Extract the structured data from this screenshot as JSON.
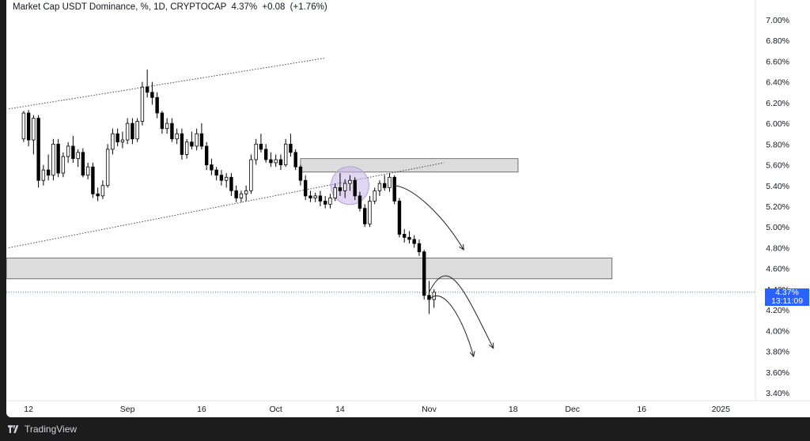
{
  "header": {
    "title": "Market Cap USDT Dominance, %, 1D, CRYPTOCAP",
    "last": "4.37%",
    "change": "+0.08",
    "change_pct": "(+1.76%)"
  },
  "price_badge": {
    "value": "4.37%",
    "countdown": "13:11:09"
  },
  "footer": {
    "brand": "TradingView"
  },
  "colors": {
    "up": "#ffffff",
    "down": "#000000",
    "zone": "#dcdcdc",
    "last_line": "#2962ff",
    "highlight": "#c8b4e6"
  },
  "chart_data": {
    "type": "candlestick",
    "title": "Market Cap USDT Dominance, %, 1D, CRYPTOCAP",
    "y_range": [
      3.3,
      7.2
    ],
    "y_ticks": [
      "3.40%",
      "3.60%",
      "3.80%",
      "4.00%",
      "4.20%",
      "4.40%",
      "4.60%",
      "4.80%",
      "5.00%",
      "5.20%",
      "5.40%",
      "5.60%",
      "5.80%",
      "6.00%",
      "6.20%",
      "6.40%",
      "6.60%",
      "6.80%",
      "7.00%"
    ],
    "x_ticks": [
      {
        "label": "12",
        "day": 0
      },
      {
        "label": "Sep",
        "day": 20
      },
      {
        "label": "16",
        "day": 35
      },
      {
        "label": "Oct",
        "day": 50
      },
      {
        "label": "14",
        "day": 63
      },
      {
        "label": "Nov",
        "day": 81
      },
      {
        "label": "18",
        "day": 98
      },
      {
        "label": "Dec",
        "day": 110
      },
      {
        "label": "16",
        "day": 124
      },
      {
        "label": "2025",
        "day": 140
      }
    ],
    "x_day_range": [
      -4.5,
      147
    ],
    "candles": [
      [
        -1,
        5.85,
        6.12,
        5.82,
        6.1
      ],
      [
        0,
        6.1,
        6.13,
        5.78,
        5.84
      ],
      [
        1,
        5.84,
        6.08,
        5.7,
        6.05
      ],
      [
        2,
        6.05,
        6.08,
        5.38,
        5.45
      ],
      [
        3,
        5.45,
        5.6,
        5.4,
        5.55
      ],
      [
        4,
        5.55,
        5.7,
        5.45,
        5.5
      ],
      [
        5,
        5.5,
        5.85,
        5.45,
        5.8
      ],
      [
        6,
        5.8,
        5.85,
        5.48,
        5.52
      ],
      [
        7,
        5.52,
        5.72,
        5.48,
        5.68
      ],
      [
        8,
        5.68,
        5.82,
        5.62,
        5.78
      ],
      [
        9,
        5.78,
        5.88,
        5.62,
        5.66
      ],
      [
        10,
        5.66,
        5.75,
        5.58,
        5.72
      ],
      [
        11,
        5.72,
        5.76,
        5.48,
        5.5
      ],
      [
        12,
        5.5,
        5.62,
        5.46,
        5.58
      ],
      [
        13,
        5.58,
        5.62,
        5.28,
        5.32
      ],
      [
        14,
        5.32,
        5.38,
        5.25,
        5.3
      ],
      [
        15,
        5.3,
        5.45,
        5.27,
        5.4
      ],
      [
        16,
        5.4,
        5.8,
        5.38,
        5.75
      ],
      [
        17,
        5.75,
        5.95,
        5.7,
        5.9
      ],
      [
        18,
        5.9,
        5.95,
        5.78,
        5.82
      ],
      [
        19,
        5.82,
        5.92,
        5.76,
        5.84
      ],
      [
        20,
        5.84,
        6.05,
        5.8,
        6.0
      ],
      [
        21,
        6.0,
        6.05,
        5.8,
        5.85
      ],
      [
        22,
        5.85,
        6.05,
        5.82,
        6.02
      ],
      [
        23,
        6.02,
        6.4,
        5.98,
        6.35
      ],
      [
        24,
        6.35,
        6.52,
        6.25,
        6.3
      ],
      [
        25,
        6.3,
        6.4,
        6.18,
        6.25
      ],
      [
        26,
        6.25,
        6.3,
        6.05,
        6.1
      ],
      [
        27,
        6.1,
        6.12,
        5.9,
        5.95
      ],
      [
        28,
        5.95,
        6.05,
        5.9,
        6.0
      ],
      [
        29,
        6.0,
        6.05,
        5.82,
        5.85
      ],
      [
        30,
        5.85,
        5.95,
        5.8,
        5.9
      ],
      [
        31,
        5.9,
        5.95,
        5.65,
        5.7
      ],
      [
        32,
        5.7,
        5.85,
        5.66,
        5.82
      ],
      [
        33,
        5.82,
        5.92,
        5.75,
        5.78
      ],
      [
        34,
        5.78,
        5.95,
        5.74,
        5.9
      ],
      [
        35,
        5.9,
        6.0,
        5.75,
        5.78
      ],
      [
        36,
        5.78,
        5.82,
        5.55,
        5.6
      ],
      [
        37,
        5.6,
        5.66,
        5.5,
        5.55
      ],
      [
        38,
        5.55,
        5.58,
        5.45,
        5.5
      ],
      [
        39,
        5.5,
        5.55,
        5.4,
        5.45
      ],
      [
        40,
        5.45,
        5.52,
        5.38,
        5.48
      ],
      [
        41,
        5.48,
        5.52,
        5.3,
        5.35
      ],
      [
        42,
        5.35,
        5.4,
        5.24,
        5.28
      ],
      [
        43,
        5.28,
        5.35,
        5.24,
        5.32
      ],
      [
        44,
        5.32,
        5.4,
        5.25,
        5.35
      ],
      [
        45,
        5.35,
        5.7,
        5.32,
        5.65
      ],
      [
        46,
        5.65,
        5.85,
        5.6,
        5.8
      ],
      [
        47,
        5.8,
        5.9,
        5.72,
        5.75
      ],
      [
        48,
        5.75,
        5.8,
        5.62,
        5.65
      ],
      [
        49,
        5.65,
        5.72,
        5.58,
        5.62
      ],
      [
        50,
        5.62,
        5.7,
        5.58,
        5.65
      ],
      [
        51,
        5.65,
        5.7,
        5.55,
        5.6
      ],
      [
        52,
        5.6,
        5.85,
        5.58,
        5.8
      ],
      [
        53,
        5.8,
        5.9,
        5.68,
        5.72
      ],
      [
        54,
        5.72,
        5.75,
        5.55,
        5.58
      ],
      [
        55,
        5.58,
        5.6,
        5.4,
        5.45
      ],
      [
        56,
        5.45,
        5.5,
        5.26,
        5.3
      ],
      [
        57,
        5.3,
        5.35,
        5.24,
        5.28
      ],
      [
        58,
        5.28,
        5.33,
        5.24,
        5.3
      ],
      [
        59,
        5.3,
        5.35,
        5.2,
        5.25
      ],
      [
        60,
        5.25,
        5.3,
        5.18,
        5.22
      ],
      [
        61,
        5.22,
        5.32,
        5.18,
        5.28
      ],
      [
        62,
        5.28,
        5.42,
        5.25,
        5.38
      ],
      [
        63,
        5.38,
        5.52,
        5.3,
        5.35
      ],
      [
        64,
        5.35,
        5.46,
        5.28,
        5.42
      ],
      [
        65,
        5.42,
        5.5,
        5.35,
        5.45
      ],
      [
        66,
        5.45,
        5.48,
        5.26,
        5.3
      ],
      [
        67,
        5.3,
        5.34,
        5.15,
        5.18
      ],
      [
        68,
        5.18,
        5.22,
        5.0,
        5.03
      ],
      [
        69,
        5.03,
        5.3,
        5.0,
        5.25
      ],
      [
        70,
        5.25,
        5.38,
        5.22,
        5.35
      ],
      [
        71,
        5.35,
        5.45,
        5.3,
        5.42
      ],
      [
        72,
        5.42,
        5.5,
        5.35,
        5.38
      ],
      [
        73,
        5.38,
        5.52,
        5.34,
        5.48
      ],
      [
        74,
        5.48,
        5.5,
        5.22,
        5.25
      ],
      [
        75,
        5.25,
        5.28,
        4.9,
        4.93
      ],
      [
        76,
        4.93,
        4.98,
        4.85,
        4.9
      ],
      [
        77,
        4.9,
        4.96,
        4.84,
        4.88
      ],
      [
        78,
        4.88,
        4.92,
        4.8,
        4.84
      ],
      [
        79,
        4.84,
        4.88,
        4.72,
        4.76
      ],
      [
        80,
        4.76,
        4.78,
        4.3,
        4.34
      ],
      [
        81,
        4.34,
        4.48,
        4.16,
        4.3
      ],
      [
        82,
        4.3,
        4.4,
        4.22,
        4.37
      ]
    ],
    "zones": [
      {
        "y_top": 5.66,
        "y_bottom": 5.53,
        "day_start": 55,
        "day_end": 99
      },
      {
        "y_top": 4.7,
        "y_bottom": 4.5,
        "day_start": -4.5,
        "day_end": 118
      }
    ],
    "trendlines": [
      {
        "from": [
          -4,
          6.14
        ],
        "to": [
          60,
          6.63
        ]
      },
      {
        "from": [
          -4,
          4.8
        ],
        "to": [
          84,
          5.62
        ]
      }
    ],
    "projections": [
      {
        "points": [
          [
            74,
            5.4
          ],
          [
            78,
            5.38
          ],
          [
            84,
            5.1
          ],
          [
            88,
            4.78
          ]
        ]
      },
      {
        "points": [
          [
            81,
            4.37
          ],
          [
            85,
            4.75
          ],
          [
            88,
            4.4
          ],
          [
            94,
            3.83
          ]
        ]
      },
      {
        "points": [
          [
            81,
            4.3
          ],
          [
            84,
            4.45
          ],
          [
            88,
            4.1
          ],
          [
            90,
            3.75
          ]
        ]
      }
    ],
    "highlight": {
      "day": 65,
      "y": 5.4
    },
    "last_value": 4.37
  }
}
